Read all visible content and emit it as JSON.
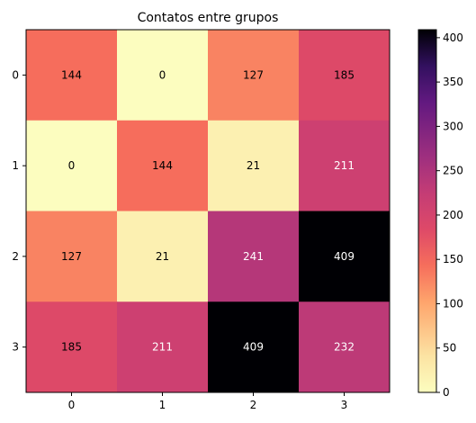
{
  "chart_data": {
    "type": "heatmap",
    "title": "Contatos entre grupos",
    "xlabel": "",
    "ylabel": "",
    "x_categories": [
      "0",
      "1",
      "2",
      "3"
    ],
    "y_categories": [
      "0",
      "1",
      "2",
      "3"
    ],
    "values": [
      [
        144,
        0,
        127,
        185
      ],
      [
        0,
        144,
        21,
        211
      ],
      [
        127,
        21,
        241,
        409
      ],
      [
        185,
        211,
        409,
        232
      ]
    ],
    "colormap": "magma_r",
    "vmin": 0,
    "vmax": 409,
    "colorbar_ticks": [
      0,
      50,
      100,
      150,
      200,
      250,
      300,
      350,
      400
    ],
    "annotation_colors": {
      "dark_cell_text": "#ffffff",
      "light_cell_text": "#000000"
    }
  }
}
